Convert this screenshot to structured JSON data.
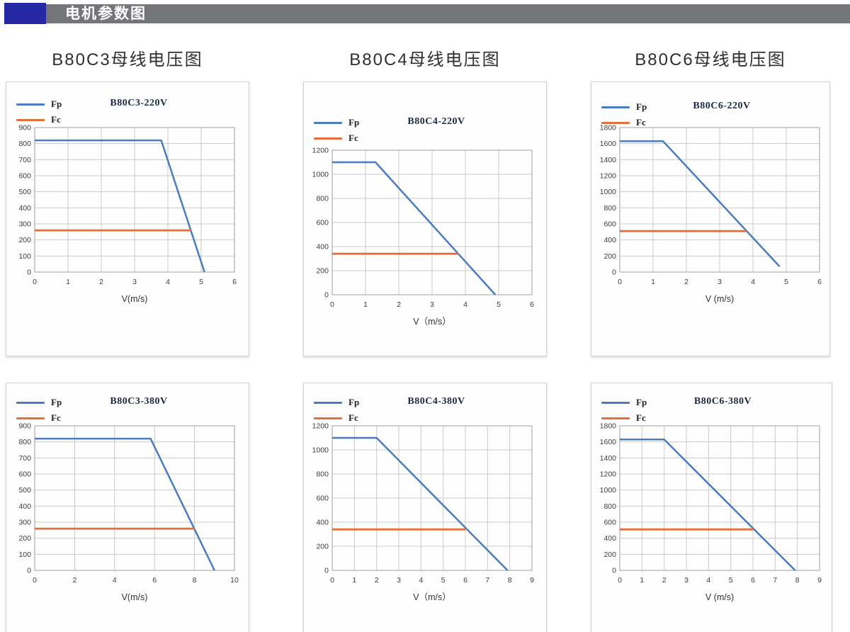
{
  "header": {
    "title": "电机参数图",
    "accent_color": "#2428A3",
    "bar_color": "#747579",
    "text_color": "#FFFFFF"
  },
  "chart_data": [
    {
      "type": "line",
      "outer_title": "B80C3母线电压图",
      "title": "B80C3-220V",
      "xlabel": "V(m/s)",
      "ylabel": "",
      "xlim": [
        0,
        6
      ],
      "xstep": 1,
      "ylim": [
        0,
        900
      ],
      "ystep": 100,
      "grid": true,
      "legend_position": "top-left",
      "series": [
        {
          "name": "Fp",
          "color": "#4A7CBE",
          "points": [
            [
              0,
              820
            ],
            [
              3.8,
              820
            ],
            [
              5.1,
              0
            ]
          ]
        },
        {
          "name": "Fc",
          "color": "#E2703A",
          "points": [
            [
              0,
              260
            ],
            [
              4.7,
              260
            ]
          ]
        }
      ]
    },
    {
      "type": "line",
      "outer_title": "B80C4母线电压图",
      "title": "B80C4-220V",
      "xlabel": "V（m/s）",
      "ylabel": "",
      "xlim": [
        0,
        6
      ],
      "xstep": 1,
      "ylim": [
        0,
        1200
      ],
      "ystep": 200,
      "grid": true,
      "legend_position": "top-left",
      "series": [
        {
          "name": "Fp",
          "color": "#4A7CBE",
          "points": [
            [
              0,
              1100
            ],
            [
              1.3,
              1100
            ],
            [
              4.9,
              0
            ]
          ]
        },
        {
          "name": "Fc",
          "color": "#E2703A",
          "points": [
            [
              0,
              340
            ],
            [
              3.8,
              340
            ]
          ]
        }
      ]
    },
    {
      "type": "line",
      "outer_title": "B80C6母线电压图",
      "title": "B80C6-220V",
      "xlabel": "V (m/s)",
      "ylabel": "",
      "xlim": [
        0,
        6
      ],
      "xstep": 1,
      "ylim": [
        0,
        1800
      ],
      "ystep": 200,
      "grid": true,
      "legend_position": "top-left",
      "series": [
        {
          "name": "Fp",
          "color": "#4A7CBE",
          "points": [
            [
              0,
              1630
            ],
            [
              1.3,
              1630
            ],
            [
              4.8,
              70
            ]
          ]
        },
        {
          "name": "Fc",
          "color": "#E2703A",
          "points": [
            [
              0,
              510
            ],
            [
              3.8,
              510
            ]
          ]
        }
      ]
    },
    {
      "type": "line",
      "outer_title": "",
      "title": "B80C3-380V",
      "xlabel": "V(m/s)",
      "ylabel": "",
      "xlim": [
        0,
        10
      ],
      "xstep": 2,
      "ylim": [
        0,
        900
      ],
      "ystep": 100,
      "grid": true,
      "legend_position": "top-left",
      "series": [
        {
          "name": "Fp",
          "color": "#4A7CBE",
          "points": [
            [
              0,
              820
            ],
            [
              5.8,
              820
            ],
            [
              9,
              0
            ]
          ]
        },
        {
          "name": "Fc",
          "color": "#E2703A",
          "points": [
            [
              0,
              260
            ],
            [
              8,
              260
            ]
          ]
        }
      ]
    },
    {
      "type": "line",
      "outer_title": "",
      "title": "B80C4-380V",
      "xlabel": "V（m/s）",
      "ylabel": "",
      "xlim": [
        0,
        9
      ],
      "xstep": 1,
      "ylim": [
        0,
        1200
      ],
      "ystep": 200,
      "grid": true,
      "legend_position": "top-left",
      "series": [
        {
          "name": "Fp",
          "color": "#4A7CBE",
          "points": [
            [
              0,
              1100
            ],
            [
              2,
              1100
            ],
            [
              7.9,
              0
            ]
          ]
        },
        {
          "name": "Fc",
          "color": "#E2703A",
          "points": [
            [
              0,
              340
            ],
            [
              6,
              340
            ]
          ]
        }
      ]
    },
    {
      "type": "line",
      "outer_title": "",
      "title": "B80C6-380V",
      "xlabel": "V (m/s)",
      "ylabel": "",
      "xlim": [
        0,
        9
      ],
      "xstep": 1,
      "ylim": [
        0,
        1800
      ],
      "ystep": 200,
      "grid": true,
      "legend_position": "top-left",
      "series": [
        {
          "name": "Fp",
          "color": "#4A7CBE",
          "points": [
            [
              0,
              1630
            ],
            [
              2,
              1630
            ],
            [
              7.9,
              0
            ]
          ]
        },
        {
          "name": "Fc",
          "color": "#E2703A",
          "points": [
            [
              0,
              510
            ],
            [
              6,
              510
            ]
          ]
        }
      ]
    }
  ]
}
